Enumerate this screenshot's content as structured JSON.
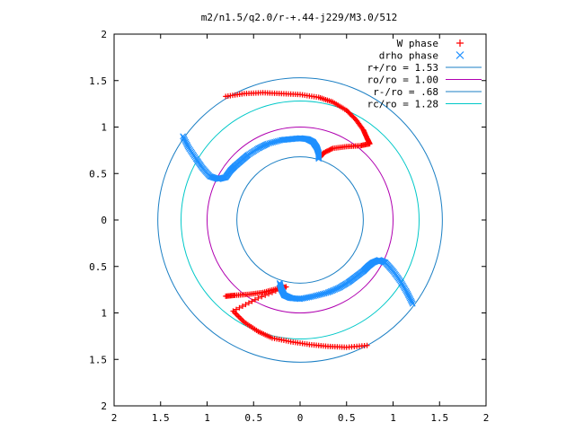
{
  "chart_data": {
    "type": "scatter",
    "title": "m2/n1.5/q2.0/r-+.44-j229/M3.0/512",
    "xlim": [
      -2,
      2
    ],
    "ylim": [
      -2,
      2
    ],
    "x_tick_values": [
      -2,
      -1.5,
      -1,
      -0.5,
      0,
      0.5,
      1,
      1.5,
      2
    ],
    "x_tick_labels": [
      "2",
      "1.5",
      "1",
      "0.5",
      "0",
      "0.5",
      "1",
      "1.5",
      "2"
    ],
    "y_tick_values": [
      2,
      1.5,
      1,
      0.5,
      0,
      -0.5,
      -1,
      -1.5,
      -2
    ],
    "y_tick_labels": [
      "2",
      "1.5",
      "1",
      "0.5",
      "0",
      "0.5",
      "1",
      "1.5",
      "2"
    ],
    "grid": false,
    "legend_position": "top-right",
    "legend": [
      {
        "label": "W phase",
        "symbol": "plus",
        "color": "#ff0000"
      },
      {
        "label": "drho phase",
        "symbol": "cross",
        "color": "#1e90ff"
      },
      {
        "label": "r+/ro = 1.53",
        "symbol": "line",
        "color": "#1b7fc4"
      },
      {
        "label": "ro/ro = 1.00",
        "symbol": "line",
        "color": "#b000b0"
      },
      {
        "label": "r-/ro = .68",
        "symbol": "line",
        "color": "#1b7fc4"
      },
      {
        "label": "rc/ro = 1.28",
        "symbol": "line",
        "color": "#00c8c8"
      }
    ],
    "circles": [
      {
        "name": "r+/ro = 1.53",
        "radius": 1.53,
        "color": "#1b7fc4"
      },
      {
        "name": "ro/ro = 1.00",
        "radius": 1.0,
        "color": "#b000b0"
      },
      {
        "name": "r-/ro = .68",
        "radius": 0.68,
        "color": "#1b7fc4"
      },
      {
        "name": "rc/ro = 1.28",
        "radius": 1.28,
        "color": "#00c8c8"
      }
    ],
    "series": [
      {
        "name": "W phase",
        "marker": "plus",
        "color": "#ff0000",
        "segments": [
          [
            [
              -0.8,
              1.33
            ],
            [
              -0.6,
              1.36
            ],
            [
              -0.4,
              1.37
            ],
            [
              -0.2,
              1.36
            ],
            [
              0,
              1.35
            ],
            [
              0.2,
              1.32
            ],
            [
              0.35,
              1.27
            ],
            [
              0.5,
              1.18
            ],
            [
              0.6,
              1.08
            ],
            [
              0.68,
              0.97
            ],
            [
              0.72,
              0.88
            ],
            [
              0.75,
              0.82
            ],
            [
              0.65,
              0.8
            ],
            [
              0.5,
              0.79
            ],
            [
              0.35,
              0.77
            ],
            [
              0.25,
              0.72
            ],
            [
              0.22,
              0.68
            ]
          ],
          [
            [
              -0.8,
              -0.82
            ],
            [
              -0.7,
              -0.81
            ],
            [
              -0.55,
              -0.8
            ],
            [
              -0.4,
              -0.78
            ],
            [
              -0.25,
              -0.74
            ],
            [
              -0.15,
              -0.72
            ],
            [
              -0.45,
              -0.84
            ],
            [
              -0.72,
              -0.98
            ],
            [
              -0.6,
              -1.1
            ],
            [
              -0.45,
              -1.2
            ],
            [
              -0.3,
              -1.27
            ],
            [
              -0.1,
              -1.31
            ],
            [
              0.1,
              -1.34
            ],
            [
              0.3,
              -1.36
            ],
            [
              0.5,
              -1.37
            ],
            [
              0.72,
              -1.35
            ]
          ]
        ]
      },
      {
        "name": "drho phase",
        "marker": "cross",
        "color": "#1e90ff",
        "segments": [
          [
            [
              -1.26,
              0.9
            ],
            [
              -1.2,
              0.78
            ],
            [
              -1.12,
              0.66
            ],
            [
              -1.05,
              0.56
            ],
            [
              -0.97,
              0.47
            ],
            [
              -0.88,
              0.44
            ],
            [
              -0.8,
              0.46
            ],
            [
              -0.75,
              0.53
            ],
            [
              -0.7,
              0.58
            ],
            [
              -0.63,
              0.64
            ],
            [
              -0.56,
              0.7
            ],
            [
              -0.45,
              0.77
            ],
            [
              -0.35,
              0.82
            ],
            [
              -0.2,
              0.86
            ],
            [
              -0.1,
              0.87
            ],
            [
              0,
              0.88
            ],
            [
              0.08,
              0.87
            ],
            [
              0.14,
              0.84
            ],
            [
              0.18,
              0.78
            ],
            [
              0.2,
              0.72
            ],
            [
              0.2,
              0.66
            ]
          ],
          [
            [
              1.21,
              -0.9
            ],
            [
              1.15,
              -0.78
            ],
            [
              1.08,
              -0.66
            ],
            [
              1,
              -0.55
            ],
            [
              0.92,
              -0.46
            ],
            [
              0.85,
              -0.43
            ],
            [
              0.78,
              -0.46
            ],
            [
              0.73,
              -0.5
            ],
            [
              0.68,
              -0.55
            ],
            [
              0.6,
              -0.61
            ],
            [
              0.52,
              -0.67
            ],
            [
              0.42,
              -0.73
            ],
            [
              0.3,
              -0.78
            ],
            [
              0.15,
              -0.82
            ],
            [
              0,
              -0.85
            ],
            [
              -0.1,
              -0.84
            ],
            [
              -0.17,
              -0.81
            ],
            [
              -0.2,
              -0.75
            ],
            [
              -0.22,
              -0.68
            ]
          ]
        ]
      }
    ]
  }
}
